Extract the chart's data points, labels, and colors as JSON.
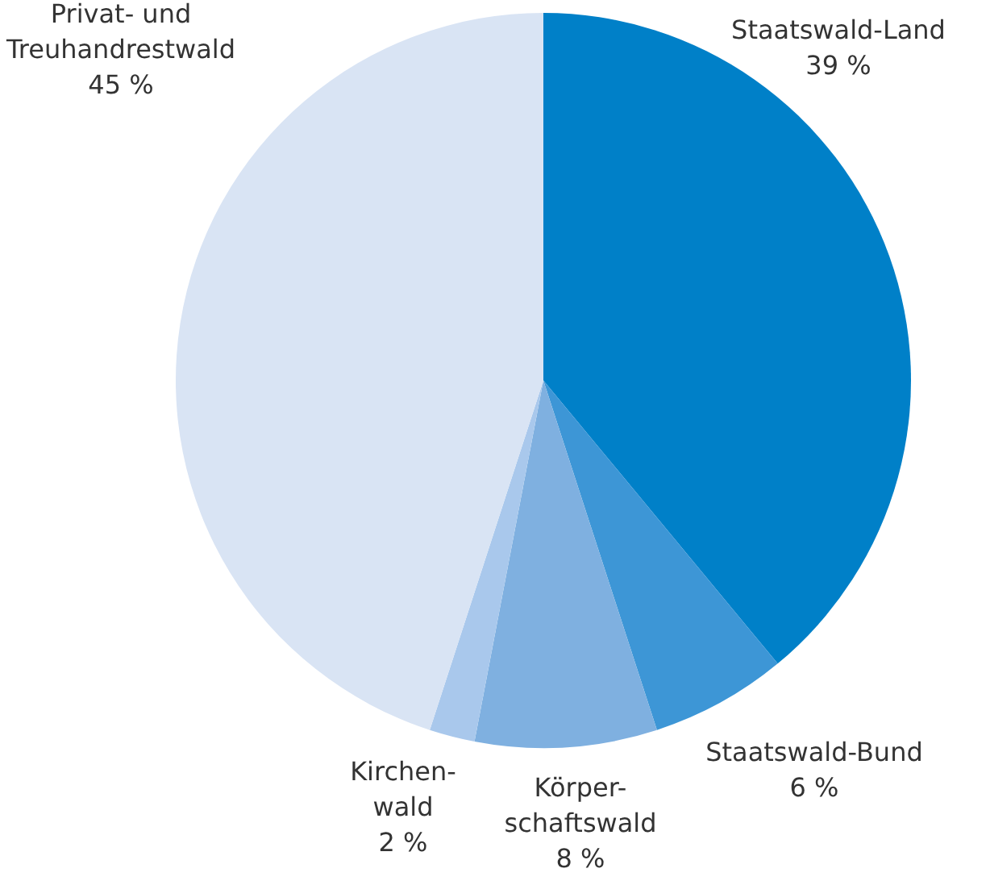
{
  "chart_data": {
    "type": "pie",
    "categories": [
      "Staatswald-Land",
      "Staatswald-Bund",
      "Körper-\nschaftswald",
      "Kirchen-\nwald",
      "Privat- und\nTreuhandrestwald"
    ],
    "values": [
      39,
      6,
      8,
      2,
      45
    ],
    "colors": [
      "#0080c8",
      "#3d96d6",
      "#7fb0e0",
      "#a9c8ec",
      "#d9e4f4"
    ],
    "value_labels": [
      "39 %",
      "6 %",
      "8 %",
      "2 %",
      "45 %"
    ]
  }
}
